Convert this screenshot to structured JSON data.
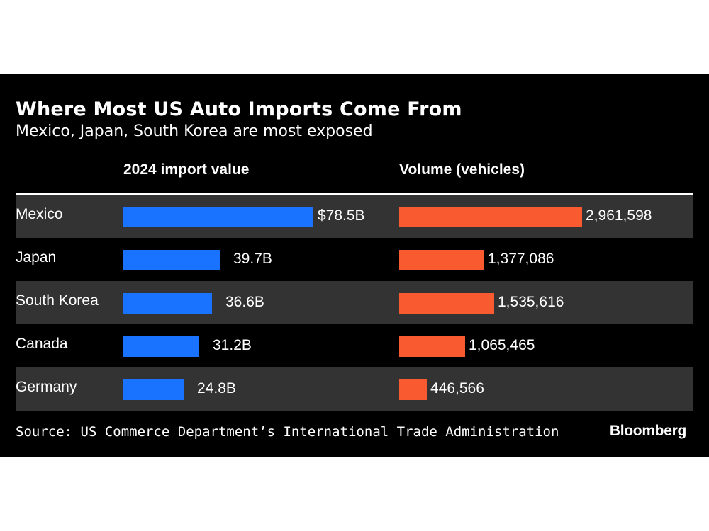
{
  "chart_data": {
    "type": "bar",
    "title": "Where Most US Auto Imports Come From",
    "subtitle": "Mexico, Japan, South Korea are most exposed",
    "categories": [
      "Mexico",
      "Japan",
      "South Korea",
      "Canada",
      "Germany"
    ],
    "series": [
      {
        "name": "2024 import value",
        "values": [
          78.5,
          39.7,
          36.6,
          31.2,
          24.8
        ],
        "labels": [
          "$78.5B",
          "39.7B",
          "36.6B",
          "31.2B",
          "24.8B"
        ],
        "color": "#1a73ff"
      },
      {
        "name": "Volume (vehicles)",
        "values": [
          2961598,
          1377086,
          1535616,
          1065465,
          446566
        ],
        "labels": [
          "2,961,598",
          "1,377,086",
          "1,535,616",
          "1,065,465",
          "446,566"
        ],
        "color": "#fa5a2f"
      }
    ],
    "orientation": "horizontal",
    "legend": "column headers",
    "grid": false
  },
  "footer": {
    "source": "Source: US Commerce Department’s International Trade Administration",
    "brand": "Bloomberg"
  },
  "colors": {
    "background": "#000000",
    "row_shade": "#333333",
    "text": "#ffffff"
  }
}
